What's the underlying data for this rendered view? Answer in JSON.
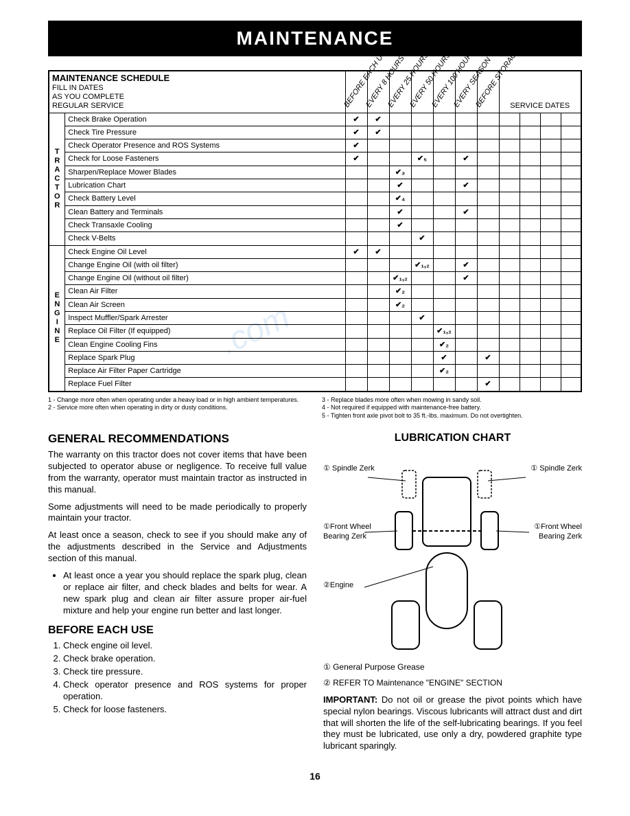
{
  "header": "MAINTENANCE",
  "schedule": {
    "title": "MAINTENANCE SCHEDULE",
    "subtitle": "FILL IN DATES\nAS YOU COMPLETE\nREGULAR SERVICE",
    "diag_headers": [
      "BEFORE EACH USE",
      "EVERY 8 HOURS",
      "EVERY 25 HOURS",
      "EVERY 50 HOURS",
      "EVERY 100 HOURS",
      "EVERY SEASON",
      "BEFORE STORAGE"
    ],
    "service_dates_label": "SERVICE DATES",
    "groups": [
      {
        "label": "TRACTOR",
        "rows": [
          {
            "task": "Check Brake Operation",
            "checks": [
              "✔",
              "✔",
              "",
              "",
              "",
              "",
              ""
            ]
          },
          {
            "task": "Check Tire Pressure",
            "checks": [
              "✔",
              "✔",
              "",
              "",
              "",
              "",
              ""
            ]
          },
          {
            "task": "Check Operator Presence and ROS Systems",
            "checks": [
              "✔",
              "",
              "",
              "",
              "",
              "",
              ""
            ]
          },
          {
            "task": "Check for Loose Fasteners",
            "checks": [
              "✔",
              "",
              "",
              "✔₅",
              "",
              "✔",
              ""
            ]
          },
          {
            "task": "Sharpen/Replace Mower Blades",
            "checks": [
              "",
              "",
              "✔₃",
              "",
              "",
              "",
              ""
            ]
          },
          {
            "task": "Lubrication Chart",
            "checks": [
              "",
              "",
              "✔",
              "",
              "",
              "✔",
              ""
            ]
          },
          {
            "task": "Check Battery Level",
            "checks": [
              "",
              "",
              "✔₄",
              "",
              "",
              "",
              ""
            ]
          },
          {
            "task": "Clean Battery and Terminals",
            "checks": [
              "",
              "",
              "✔",
              "",
              "",
              "✔",
              ""
            ]
          },
          {
            "task": "Check Transaxle Cooling",
            "checks": [
              "",
              "",
              "✔",
              "",
              "",
              "",
              ""
            ]
          },
          {
            "task": "Check V-Belts",
            "checks": [
              "",
              "",
              "",
              "✔",
              "",
              "",
              ""
            ]
          }
        ]
      },
      {
        "label": "ENGINE",
        "rows": [
          {
            "task": "Check Engine Oil Level",
            "checks": [
              "✔",
              "✔",
              "",
              "",
              "",
              "",
              ""
            ]
          },
          {
            "task": "Change Engine Oil (with oil filter)",
            "checks": [
              "",
              "",
              "",
              "✔₁,₂",
              "",
              "✔",
              ""
            ]
          },
          {
            "task": "Change Engine Oil (without oil filter)",
            "checks": [
              "",
              "",
              "✔₁,₂",
              "",
              "",
              "✔",
              ""
            ]
          },
          {
            "task": "Clean Air Filter",
            "checks": [
              "",
              "",
              "✔₂",
              "",
              "",
              "",
              ""
            ]
          },
          {
            "task": "Clean Air Screen",
            "checks": [
              "",
              "",
              "✔₂",
              "",
              "",
              "",
              ""
            ]
          },
          {
            "task": "Inspect Muffler/Spark Arrester",
            "checks": [
              "",
              "",
              "",
              "✔",
              "",
              "",
              ""
            ]
          },
          {
            "task": "Replace Oil Filter (If equipped)",
            "checks": [
              "",
              "",
              "",
              "",
              "✔₁,₂",
              "",
              ""
            ]
          },
          {
            "task": "Clean Engine Cooling Fins",
            "checks": [
              "",
              "",
              "",
              "",
              "✔₂",
              "",
              ""
            ]
          },
          {
            "task": "Replace Spark Plug",
            "checks": [
              "",
              "",
              "",
              "",
              "✔",
              "",
              "✔"
            ]
          },
          {
            "task": "Replace Air Filter Paper Cartridge",
            "checks": [
              "",
              "",
              "",
              "",
              "✔₂",
              "",
              ""
            ]
          },
          {
            "task": "Replace Fuel Filter",
            "checks": [
              "",
              "",
              "",
              "",
              "",
              "",
              "✔"
            ]
          }
        ]
      }
    ],
    "footnotes_left": "1 - Change more often when operating under a heavy load or in high ambient temperatures.\n2 - Service more often when operating in dirty or dusty conditions.",
    "footnotes_right": "3 - Replace blades more often when mowing in sandy soil.\n4 - Not required if equipped with maintenance-free battery.\n5 - Tighten front axle pivot bolt to 35 ft.-lbs. maximum. Do not overtighten."
  },
  "left_col": {
    "h1": "GENERAL RECOMMENDATIONS",
    "p1": "The warranty on this tractor does not cover items that have been subjected to operator abuse or negligence. To receive full value from the warranty, operator must maintain tractor as instructed in this manual.",
    "p2": "Some adjustments will need to be made periodically to properly maintain your tractor.",
    "p3": "At least once a season, check to see if you should make any of the adjustments described in the Service and Adjustments section of this manual.",
    "bullet": "At least once a year you should replace the spark plug, clean or replace air filter, and check blades and belts for wear. A new spark plug and clean air filter assure proper air-fuel mixture and help your engine run better and last longer.",
    "h2": "BEFORE EACH USE",
    "ol": [
      "Check engine oil level.",
      "Check brake operation.",
      "Check tire pressure.",
      "Check operator presence and ROS systems for proper operation.",
      "Check for loose fasteners."
    ]
  },
  "right_col": {
    "lub_title": "LUBRICATION CHART",
    "labels": {
      "spindle_l": "① Spindle Zerk",
      "spindle_r": "① Spindle Zerk",
      "fw_l": "①Front Wheel Bearing Zerk",
      "fw_r": "①Front Wheel Bearing Zerk",
      "engine": "②Engine"
    },
    "legend1": "① General Purpose Grease",
    "legend2": "② REFER TO Maintenance \"ENGINE\" SECTION",
    "important_label": "IMPORTANT:",
    "important_text": "Do not oil or grease the pivot points which have special nylon bearings. Viscous lubricants will attract dust and dirt that will shorten the life of the self-lubricating bearings. If you feel they must be lubricated, use only a dry, powdered graphite type lubricant sparingly."
  },
  "pagenum": "16"
}
